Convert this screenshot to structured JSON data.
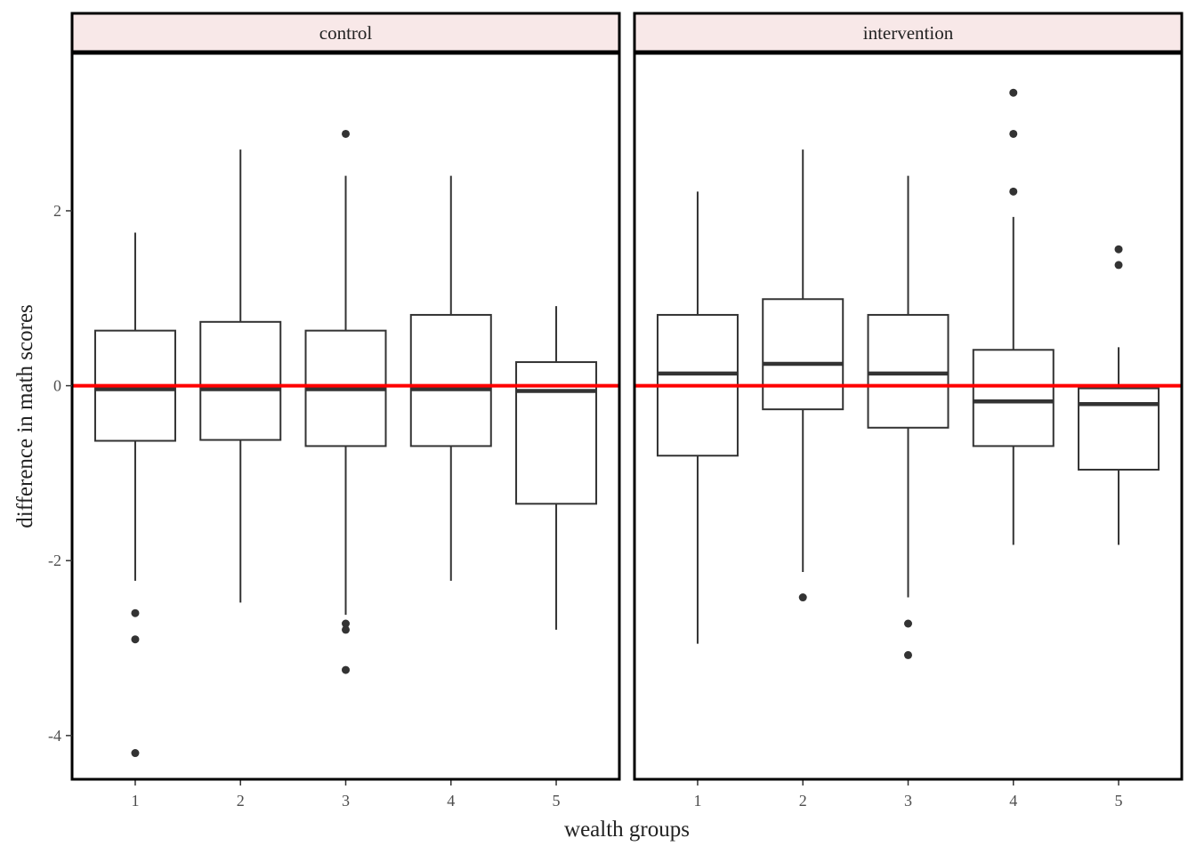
{
  "chart_data": {
    "type": "boxplot",
    "xlabel": "wealth groups",
    "ylabel": "difference in math scores",
    "ylim": [
      -4.5,
      3.8
    ],
    "y_ticks": [
      -4,
      -2,
      0,
      2
    ],
    "categories": [
      "1",
      "2",
      "3",
      "4",
      "5"
    ],
    "reference_line": {
      "y": 0,
      "color": "#ff0000"
    },
    "colors": {
      "strip_fill": "#f8e8e8",
      "box_line": "#333333",
      "panel_border": "#000000"
    },
    "panels": [
      {
        "name": "control",
        "boxes": [
          {
            "group": "1",
            "whisker_low": -2.23,
            "q1": -0.63,
            "median": -0.04,
            "q3": 0.63,
            "whisker_high": 1.75,
            "outliers": [
              -2.6,
              -2.9,
              -4.2
            ]
          },
          {
            "group": "2",
            "whisker_low": -2.48,
            "q1": -0.62,
            "median": -0.04,
            "q3": 0.73,
            "whisker_high": 2.7,
            "outliers": []
          },
          {
            "group": "3",
            "whisker_low": -2.62,
            "q1": -0.69,
            "median": -0.04,
            "q3": 0.63,
            "whisker_high": 2.4,
            "outliers": [
              -2.72,
              -2.79,
              -3.25,
              2.88
            ]
          },
          {
            "group": "4",
            "whisker_low": -2.23,
            "q1": -0.69,
            "median": -0.04,
            "q3": 0.81,
            "whisker_high": 2.4,
            "outliers": []
          },
          {
            "group": "5",
            "whisker_low": -2.79,
            "q1": -1.35,
            "median": -0.06,
            "q3": 0.27,
            "whisker_high": 0.91,
            "outliers": []
          }
        ]
      },
      {
        "name": "intervention",
        "boxes": [
          {
            "group": "1",
            "whisker_low": -2.95,
            "q1": -0.8,
            "median": 0.14,
            "q3": 0.81,
            "whisker_high": 2.22,
            "outliers": []
          },
          {
            "group": "2",
            "whisker_low": -2.13,
            "q1": -0.27,
            "median": 0.25,
            "q3": 0.99,
            "whisker_high": 2.7,
            "outliers": [
              -2.42
            ]
          },
          {
            "group": "3",
            "whisker_low": -2.42,
            "q1": -0.48,
            "median": 0.14,
            "q3": 0.81,
            "whisker_high": 2.4,
            "outliers": [
              -2.72,
              -3.08
            ]
          },
          {
            "group": "4",
            "whisker_low": -1.82,
            "q1": -0.69,
            "median": -0.18,
            "q3": 0.41,
            "whisker_high": 1.93,
            "outliers": [
              2.22,
              2.88,
              3.35
            ]
          },
          {
            "group": "5",
            "whisker_low": -1.82,
            "q1": -0.96,
            "median": -0.21,
            "q3": -0.03,
            "whisker_high": 0.44,
            "outliers": [
              1.38,
              1.56
            ]
          }
        ]
      }
    ]
  }
}
